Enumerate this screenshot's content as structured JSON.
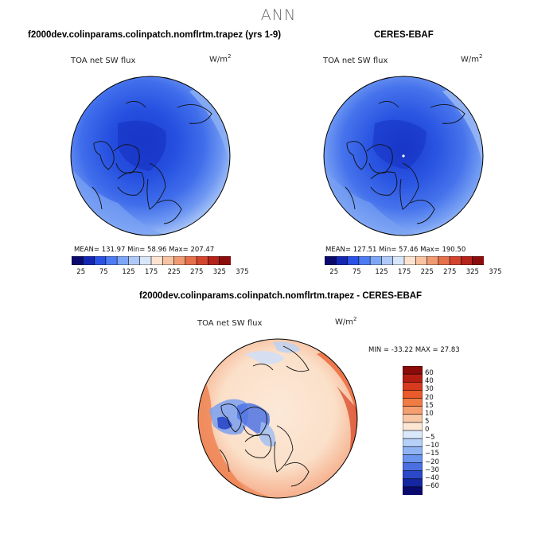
{
  "title": "ANN",
  "panels": [
    {
      "title": "f2000dev.colinparams.colinpatch.nomflrtm.trapez (yrs 1-9)",
      "variable": "TOA net SW flux",
      "units": "W/m",
      "units_exp": "2",
      "stats": "MEAN= 131.97  Min=  58.96  Max= 207.47",
      "colorbar_labels": [
        "25",
        "75",
        "125",
        "175",
        "225",
        "275",
        "325",
        "375"
      ]
    },
    {
      "title": "CERES-EBAF",
      "variable": "TOA net SW flux",
      "units": "W/m",
      "units_exp": "2",
      "stats": "MEAN= 127.51  Min=  57.46  Max= 190.50",
      "colorbar_labels": [
        "25",
        "75",
        "125",
        "175",
        "225",
        "275",
        "325",
        "375"
      ]
    }
  ],
  "diff": {
    "title": "f2000dev.colinparams.colinpatch.nomflrtm.trapez - CERES-EBAF",
    "variable": "TOA net SW flux",
    "units": "W/m",
    "units_exp": "2",
    "stats": "MIN = -33.22 MAX =  27.83",
    "colorbar_labels": [
      "60",
      "40",
      "30",
      "20",
      "15",
      "10",
      "5",
      "0",
      "−5",
      "−10",
      "−15",
      "−20",
      "−30",
      "−40",
      "−60"
    ]
  },
  "colors": {
    "abs_scale": [
      "#0a0a6e",
      "#1426b4",
      "#2a52e6",
      "#4d7bf3",
      "#7ea6f6",
      "#aec9f7",
      "#d8e6f9",
      "#fbe3d0",
      "#f7c3a2",
      "#f09a73",
      "#e5704c",
      "#d44530",
      "#b5231b",
      "#8c0d0d"
    ],
    "diff_scale": [
      "#8b0a0a",
      "#b51d12",
      "#d83a1f",
      "#ea5a2a",
      "#f07c44",
      "#f59e70",
      "#f8c8a6",
      "#fce6d4",
      "#d9e8fb",
      "#b6d0f7",
      "#90b4f3",
      "#6b94ee",
      "#4a6fe0",
      "#2a48c8",
      "#1426a0",
      "#0a0a6e"
    ],
    "abs_field": {
      "center": "#1f44d8",
      "mid": "#2f5ee6",
      "outer": "#6d97f2",
      "rim": "#a9c6f6"
    },
    "diff_field": {
      "base": "#fbe6d3",
      "warm": "#ec6a3c",
      "cool": "#5479e6",
      "pale": "#d8e7fa"
    }
  }
}
